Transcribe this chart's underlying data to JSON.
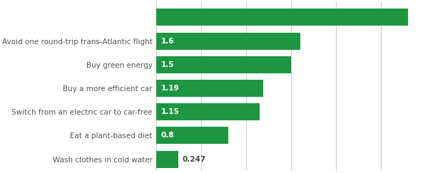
{
  "categories": [
    "Wash clothes in cold water",
    "Eat a plant-based diet",
    "Switch from an electric car to car-free",
    "Buy a more efficient car",
    "Buy green energy",
    "Avoid one round-trip trans-Atlantic flight",
    ""
  ],
  "values": [
    0.247,
    0.8,
    1.15,
    1.19,
    1.5,
    1.6,
    2.8
  ],
  "labels": [
    "0.247",
    "0.8",
    "1.15",
    "1.19",
    "1.5",
    "1.6",
    ""
  ],
  "label_inside": [
    false,
    true,
    true,
    true,
    true,
    true,
    false
  ],
  "bar_color": "#1e9641",
  "background_color": "#ffffff",
  "label_color_inside": "#ffffff",
  "label_color_outside": "#444444",
  "category_color": "#555555",
  "grid_color": "#cccccc",
  "xlim": [
    0,
    3.0
  ],
  "bar_height": 0.72,
  "label_fontsize": 7.5,
  "category_fontsize": 7.5
}
